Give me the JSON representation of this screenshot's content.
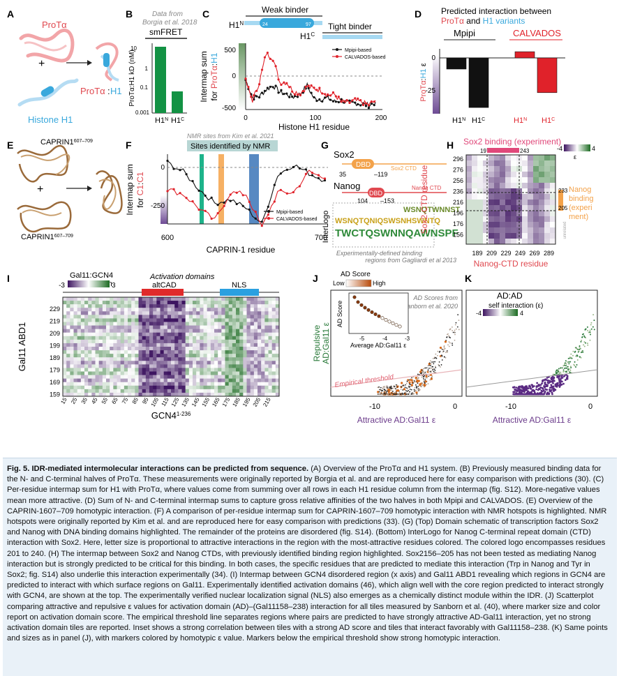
{
  "panels": {
    "A": {
      "letter": "A",
      "prota": "ProTα",
      "h1": "Histone H1",
      "complex_prota": "ProTα",
      "complex_h1": "H1",
      "colors": {
        "prota": "#e0484f",
        "h1": "#39a8dc"
      }
    },
    "B": {
      "letter": "B",
      "note1": "Data from",
      "note2": "Borgia et al. 2018",
      "method": "smFRET",
      "ylabel": "ProTα:H1 kD (nM)",
      "ticks": [
        "10",
        "1",
        "0.1",
        "0.001"
      ]
    },
    "C": {
      "letter": "C",
      "weak": "Weak binder",
      "tight": "Tight binder",
      "h1n": "H1N",
      "h1c": "H1C",
      "n24": "24",
      "n97": "97",
      "ylabel1": "Intermap sum",
      "ylabel2": "for ProTα:H1",
      "xlabel": "Histone H1 residue",
      "legend": [
        "Mpipi-based",
        "CALVADOS-based"
      ],
      "yticks": [
        "500",
        "0",
        "-500"
      ],
      "xticks": [
        "0",
        "100",
        "200"
      ]
    },
    "D": {
      "letter": "D",
      "title1": "Predicted interaction between",
      "title2a": "ProTα",
      "title2b": "and",
      "title2c": "H1 variants",
      "group1": "Mpipi",
      "group2": "CALVADOS",
      "ylabel": "ProTα:H1 ε",
      "yticks": [
        "0",
        "-25"
      ],
      "bars": [
        {
          "label": "H1N",
          "value": -9
        },
        {
          "label": "H1C",
          "value": -40
        },
        {
          "label": "H1N",
          "value": 5
        },
        {
          "label": "H1C",
          "value": -28
        }
      ]
    },
    "E": {
      "letter": "E",
      "top": "CAPRIN1607-709",
      "bottom": "CAPRIN1607-709"
    },
    "F": {
      "letter": "F",
      "note": "NMR sites from Kim et al. 2021",
      "box": "Sites identified by NMR",
      "ylabel1": "Intermap sum",
      "ylabel2": "for C1:C1",
      "xlabel": "CAPRIN-1 residue",
      "yticks": [
        "0",
        "-250"
      ],
      "xticks": [
        "600",
        "700"
      ],
      "legend": [
        "Mpipi-based",
        "CALVADOS-based"
      ]
    },
    "G": {
      "letter": "G",
      "sox2": "Sox2",
      "sox2ctd": "Sox2 CTD",
      "dbd": "DBD",
      "n35": "35",
      "n119": "119",
      "nanog": "Nanog",
      "nanogctd": "Nanog CTD",
      "n104": "104",
      "n153": "153",
      "interlogo": "InterLogo",
      "logo1": "WSNQTWNNST",
      "logo2": "WSNQTQNIQSWSNHSWNTQ",
      "logo3": "TWCTQSWNNQAWNSPF",
      "note1": "Experimentally-defined binding",
      "note2": "regions from Gagliardi et al 2013"
    },
    "H": {
      "letter": "H",
      "top": "Sox2 binding (experiment)",
      "n197": "197",
      "n243": "243",
      "cbmin": "-4",
      "cbmax": "4",
      "cblabel": "ε",
      "ylabel": "Sox2-CTD residue",
      "xlabel": "Nanog-CTD residue",
      "yticks": [
        "296",
        "276",
        "256",
        "236",
        "216",
        "196",
        "176",
        "156"
      ],
      "xticks": [
        "189",
        "209",
        "229",
        "249",
        "269",
        "289"
      ],
      "n233": "233",
      "n205": "205",
      "right1": "Nanog",
      "right2": "binding",
      "right3": "(experi",
      "right4": "ment)",
      "unrelated": "unrelated"
    },
    "I": {
      "letter": "I",
      "cbtitle1": "Gal11:GCN4",
      "cbtitle2": "interaction",
      "cbmin": "-3",
      "cbmax": "3",
      "ad": "Activation domains",
      "altcad": "altCAD",
      "nls": "NLS",
      "ylabel": "Gal11 ABD1",
      "xlabel": "GCN41-236",
      "yticks": [
        "229",
        "219",
        "209",
        "199",
        "189",
        "179",
        "169",
        "159"
      ],
      "xticks": [
        "15",
        "25",
        "35",
        "45",
        "55",
        "65",
        "75",
        "85",
        "95",
        "105",
        "115",
        "125",
        "135",
        "145",
        "155",
        "165",
        "175",
        "185",
        "195",
        "205",
        "215"
      ]
    },
    "J": {
      "letter": "J",
      "cbtitle": "AD Score",
      "low": "Low",
      "high": "High",
      "note1": "AD Scores from",
      "note2": "Sanborn et al. 2020",
      "ylabel1": "Repulsive",
      "ylabel2": "AD:Gal11 ε",
      "xlabel": "Attractive AD:Gal11 ε",
      "threshold": "Empirical threshold",
      "inset_y": "AD Score",
      "inset_x": "Average AD:Gal11 ε",
      "inset_xticks": [
        "-5",
        "-4",
        "-3"
      ],
      "xticks": [
        "-10",
        "0"
      ]
    },
    "K": {
      "letter": "K",
      "title": "AD:AD",
      "cbtitle": "self interaction (ε)",
      "cbmin": "-4",
      "cbmax": "4",
      "xlabel": "Attractive AD:Gal11 ε",
      "xticks": [
        "-10",
        "0"
      ]
    }
  },
  "caption": {
    "p1": "Fig. 5.",
    "p2": "IDR-mediated intermolecular interactions can be predicted from sequence.",
    "p3": "(A) Overview of the ProTα and H1 system. (B) Previously measured binding data for the N- and C-terminal halves of ProTα. These measurements were originally reported by Borgia et al. and are reproduced here for easy comparison with predictions (30). (C) Per-residue intermap sum for H1 with ProTα, where values come from summing over all rows in each H1 residue column from the intermap (fig. S12). More-negative values mean more attractive. (D) Sum of N- and C-terminal intermap sums to capture gross relative affinities of the two halves in both Mpipi and CALVADOS. (E) Overview of the CAPRIN-1607–709 homotypic interaction. (F) A comparison of per-residue intermap sum for CAPRIN-1607–709 homotypic interaction with NMR hotspots is highlighted. NMR hotspots were originally reported by Kim et al. and are reproduced here for easy comparison with predictions (33). (G) (Top) Domain schematic of transcription factors Sox2 and Nanog with DNA binding domains highlighted. The remainder of the proteins are disordered (fig. S14). (Bottom) InterLogo for Nanog C-terminal repeat domain (CTD) interaction with Sox2. Here, letter size is proportional to attractive interactions in the region with the most-attractive residues colored. The colored logo encompasses residues 201 to 240. (H) The intermap between Sox2 and Nanog CTDs, with previously identified binding region highlighted. Sox2156–205 has not been tested as mediating Nanog interaction but is strongly predicted to be critical for this binding. In both cases, the specific residues that are predicted to mediate this interaction (Trp in Nanog and Tyr in Sox2; fig. S14) also underlie this interaction experimentally (34). (I) Intermap between GCN4 disordered region (x axis) and Gal11 ABD1 revealing which regions in GCN4 are predicted to interact with which surface regions on Gal11. Experimentally identified activation domains (46), which align well with the core region predicted to interact strongly with GCN4, are shown at the top. The experimentally verified nuclear localization signal (NLS) also emerges as a chemically distinct module within the IDR. (J) Scatterplot comparing attractive and repulsive ε values for activation domain (AD)–(Gal11158–238) interaction for all tiles measured by Sanborn et al. (40), where marker size and color report on activation domain score. The empirical threshold line separates regions where pairs are predicted to have strongly attractive AD-Gal11 interaction, yet no strong activation domain tiles are reported. Inset shows a strong correlation between tiles with a strong AD score and tiles that interact favorably with Gal11158–238. (K) Same points and sizes as in panel (J), with markers colored by homotypic ε value. Markers below the empirical threshold show strong homotypic interaction."
  },
  "chart_data": [
    {
      "type": "bar",
      "panel": "D",
      "title": "Predicted interaction between ProTα and H1 variants",
      "categories": [
        "Mpipi H1N",
        "Mpipi H1C",
        "CALVADOS H1N",
        "CALVADOS H1C"
      ],
      "values": [
        -9,
        -40,
        5,
        -28
      ],
      "ylabel": "ProTα:H1 ε",
      "ylim": [
        -45,
        12
      ]
    },
    {
      "type": "bar",
      "panel": "B",
      "title": "smFRET",
      "categories": [
        "H1N",
        "H1C"
      ],
      "values": [
        3,
        0.07
      ],
      "ylabel": "ProTα:H1 kD (nM)",
      "yscale": "log"
    },
    {
      "type": "line",
      "panel": "C",
      "xlabel": "Histone H1 residue",
      "ylabel": "Intermap sum for ProTα:H1",
      "xlim": [
        0,
        200
      ],
      "ylim": [
        -550,
        550
      ],
      "series": [
        {
          "name": "Mpipi-based",
          "x": [
            0,
            10,
            20,
            30,
            40,
            50,
            60,
            70,
            80,
            90,
            100,
            110,
            120,
            130,
            140,
            150,
            160,
            170,
            180,
            190
          ],
          "values": [
            -60,
            -350,
            -330,
            -220,
            -150,
            -260,
            -300,
            -340,
            -290,
            -150,
            -370,
            -380,
            -360,
            -420,
            -400,
            -440,
            -440,
            -460,
            -480,
            -430
          ]
        },
        {
          "name": "CALVADOS-based",
          "x": [
            0,
            10,
            20,
            30,
            40,
            50,
            60,
            70,
            80,
            90,
            100,
            110,
            120,
            130,
            140,
            150,
            160,
            170,
            180,
            190
          ],
          "values": [
            -80,
            -400,
            -100,
            380,
            300,
            -100,
            -100,
            -250,
            -280,
            -170,
            -200,
            -230,
            -310,
            -300,
            -420,
            -440,
            -400,
            -430,
            -470,
            -400
          ]
        }
      ]
    },
    {
      "type": "line",
      "panel": "F",
      "xlabel": "CAPRIN-1 residue",
      "ylabel": "Intermap sum for C1:C1",
      "xlim": [
        607,
        709
      ],
      "ylim": [
        -320,
        80
      ],
      "series": [
        {
          "name": "Mpipi-based",
          "x": [
            607,
            617,
            627,
            637,
            647,
            657,
            667,
            677,
            687,
            697,
            707
          ],
          "values": [
            30,
            -20,
            -120,
            -200,
            -180,
            -230,
            -320,
            -40,
            20,
            -30,
            -70
          ]
        },
        {
          "name": "CALVADOS-based",
          "x": [
            607,
            617,
            627,
            637,
            647,
            657,
            667,
            677,
            687,
            697,
            707
          ],
          "values": [
            -120,
            -150,
            -230,
            -300,
            -140,
            -150,
            -340,
            -140,
            -140,
            -20,
            -60
          ]
        }
      ]
    }
  ]
}
